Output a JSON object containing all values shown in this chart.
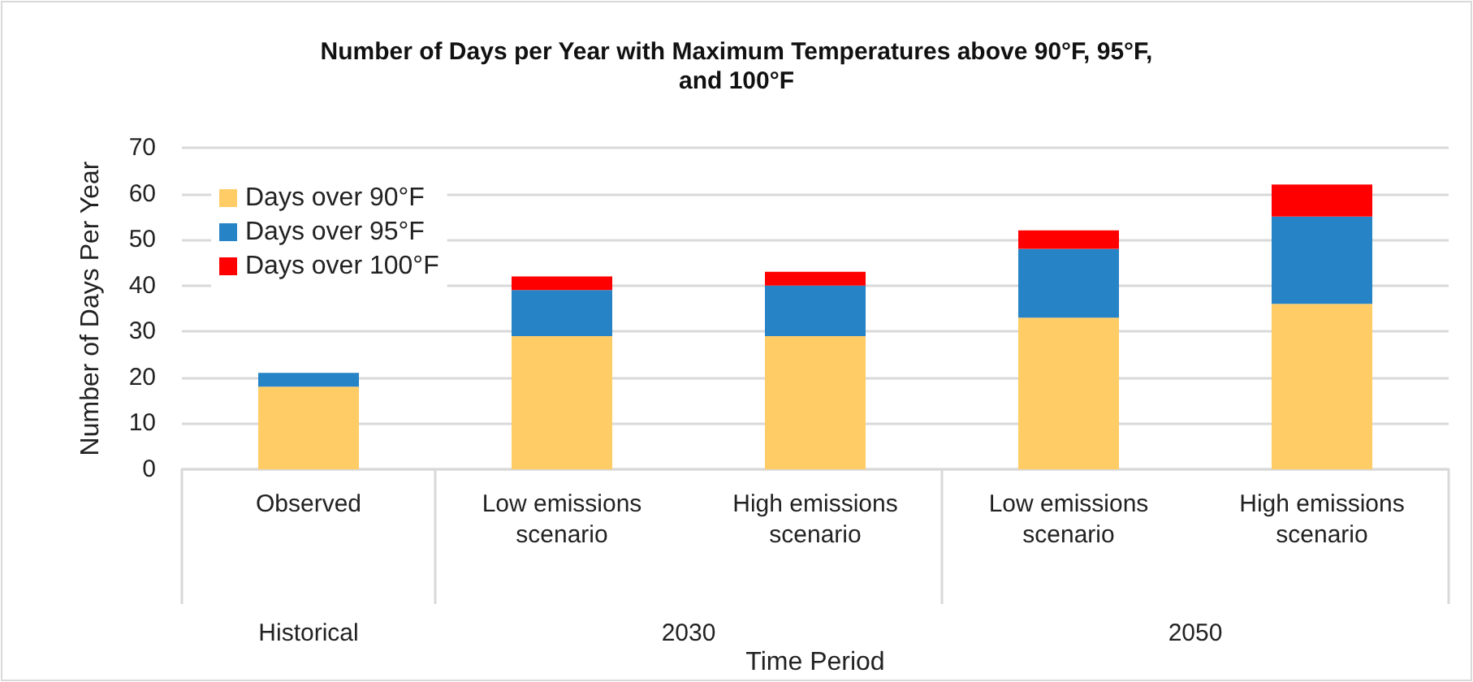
{
  "chart_data": {
    "type": "bar",
    "title": "Number of Days per Year with Maximum Temperatures above 90°F, 95°F,\nand 100°F",
    "xlabel": "Time Period",
    "ylabel": "Number of Days Per Year",
    "categories": [
      "Observed",
      "Low emissions\nscenario",
      "High emissions\nscenario",
      "Low emissions\nscenario",
      "High emissions\nscenario"
    ],
    "annotations": [
      "Historical",
      "2030",
      "2050"
    ],
    "series": [
      {
        "name": "Days over 90°F",
        "color": "#ffcc66",
        "values": [
          18,
          29,
          29,
          33,
          36
        ]
      },
      {
        "name": "Days over 95°F",
        "color": "#2683c6",
        "values": [
          3,
          10,
          11,
          15,
          19
        ]
      },
      {
        "name": "Days over 100°F",
        "color": "#ff0000",
        "values": [
          0,
          3,
          3,
          4,
          7
        ]
      }
    ],
    "stacked": true,
    "ylim": [
      0,
      70
    ],
    "yticks": [
      0,
      10,
      20,
      30,
      40,
      50,
      60,
      70
    ],
    "grid": "y",
    "legend": "top left"
  }
}
